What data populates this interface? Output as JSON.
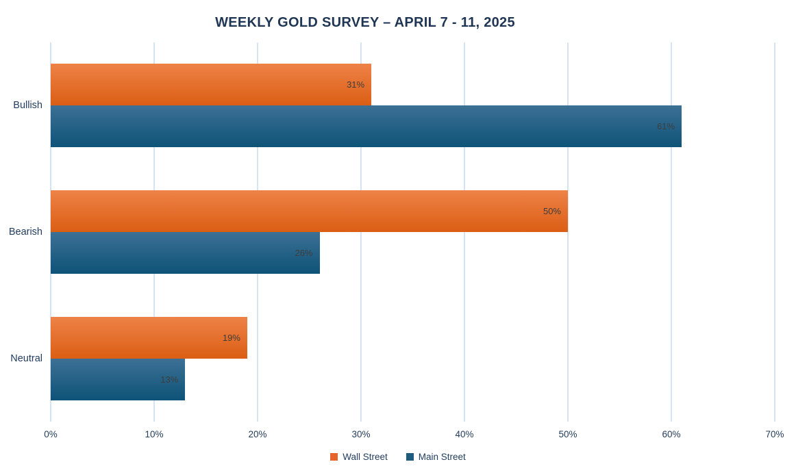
{
  "chart_data": {
    "type": "bar",
    "orientation": "horizontal",
    "title": "WEEKLY GOLD SURVEY – APRIL 7 - 11, 2025",
    "categories": [
      "Bullish",
      "Bearish",
      "Neutral"
    ],
    "series": [
      {
        "name": "Wall Street",
        "values": [
          31,
          50,
          19
        ],
        "labels": [
          "31%",
          "50%",
          "19%"
        ],
        "bar_gradient_top": "#ee8247",
        "bar_gradient_bottom": "#db5e14",
        "legend_color": "#e8632b"
      },
      {
        "name": "Main Street",
        "values": [
          61,
          26,
          13
        ],
        "labels": [
          "61%",
          "26%",
          "13%"
        ],
        "bar_gradient_top": "#3d7095",
        "bar_gradient_bottom": "#0e5378",
        "legend_color": "#1f5b7e"
      }
    ],
    "xlabel": "",
    "ylabel": "",
    "xlim": [
      0,
      70
    ],
    "x_ticks": [
      "0%",
      "10%",
      "20%",
      "30%",
      "40%",
      "50%",
      "60%",
      "70%"
    ],
    "grid": true,
    "legend_position": "bottom",
    "colors": {
      "title_text": "#1e3554",
      "axis_text": "#223c5e",
      "value_label_text": "#3d3d3d",
      "gridline": "#d6e3f2",
      "background": "#ffffff"
    }
  }
}
